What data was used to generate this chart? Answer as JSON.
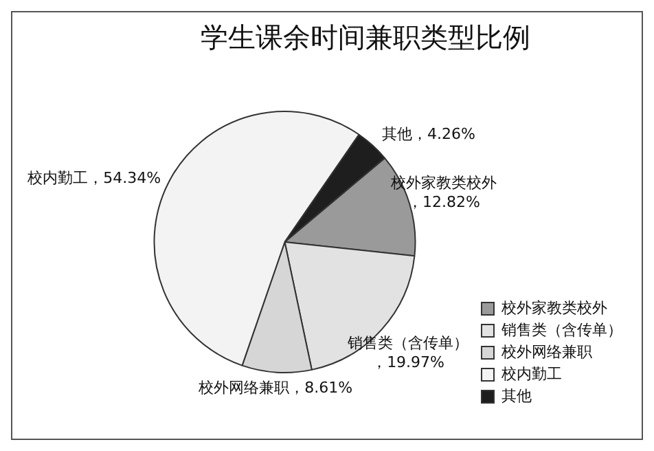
{
  "chart_data": {
    "type": "pie",
    "title": "学生课余时间兼职类型比例",
    "categories": [
      "校外家教类校外",
      "销售类（含传单）",
      "校外网络兼职",
      "校内勤工",
      "其他"
    ],
    "values": [
      12.82,
      19.97,
      8.61,
      54.34,
      4.26
    ],
    "colors": [
      "#9a9a9a",
      "#e2e2e2",
      "#d6d6d6",
      "#f3f3f3",
      "#1e1e1e"
    ],
    "value_labels": [
      "，12.82%",
      "，19.97%",
      "，8.61%",
      "，54.34%",
      "，4.26%"
    ],
    "legend": "bottom right"
  }
}
